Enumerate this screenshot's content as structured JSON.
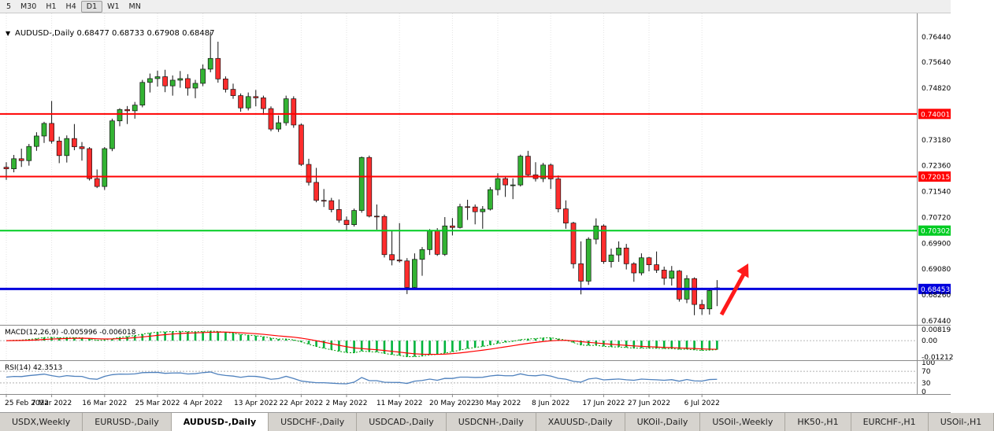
{
  "toolbar": {
    "timeframes": [
      {
        "label": "5"
      },
      {
        "label": "M30"
      },
      {
        "label": "H1"
      },
      {
        "label": "H4"
      },
      {
        "label": "D1",
        "active": true
      },
      {
        "label": "W1"
      },
      {
        "label": "MN"
      }
    ]
  },
  "chart_header": {
    "marker": "▼",
    "title": "AUDUSD-,Daily",
    "open": "0.68477",
    "high": "0.68733",
    "low": "0.67908",
    "close": "0.68487"
  },
  "chart_data": {
    "type": "candlestick",
    "symbol": "AUDUSD-",
    "timeframe": "Daily",
    "colors": {
      "up": "#33b333",
      "down": "#ff2d2d",
      "outline": "#111111",
      "wick": "#111111",
      "grid": "#e3e3e3",
      "separator": "#8a8a8a",
      "axis_text": "#000000",
      "background": "#ffffff"
    },
    "price_axis": {
      "ticks": [
        {
          "value": 0.7644,
          "label": "0.76440"
        },
        {
          "value": 0.7564,
          "label": "0.75640"
        },
        {
          "value": 0.7482,
          "label": "0.74820"
        },
        {
          "value": 0.7318,
          "label": "0.73180"
        },
        {
          "value": 0.7236,
          "label": "0.72360"
        },
        {
          "value": 0.7154,
          "label": "0.71540"
        },
        {
          "value": 0.7072,
          "label": "0.70720"
        },
        {
          "value": 0.699,
          "label": "0.69900"
        },
        {
          "value": 0.6908,
          "label": "0.69080"
        },
        {
          "value": 0.6826,
          "label": "0.68260"
        },
        {
          "value": 0.6744,
          "label": "0.67440"
        }
      ],
      "value_max": 0.77188,
      "value_min": 0.67315
    },
    "hlines": [
      {
        "value": 0.74001,
        "label": "0.74001",
        "color": "#ff0000",
        "width": 2
      },
      {
        "value": 0.72015,
        "label": "0.72015",
        "color": "#ff0000",
        "width": 2
      },
      {
        "value": 0.70302,
        "label": "0.70302",
        "color": "#00cc22",
        "width": 2
      },
      {
        "value": 0.68453,
        "label": "0.68453",
        "color": "#0000dd",
        "width": 3
      }
    ],
    "x_ticks": [
      {
        "index": 0,
        "label": "25 Feb 2022"
      },
      {
        "index": 6,
        "label": "7 Mar 2022"
      },
      {
        "index": 13,
        "label": "16 Mar 2022"
      },
      {
        "index": 20,
        "label": "25 Mar 2022"
      },
      {
        "index": 26,
        "label": "4 Apr 2022"
      },
      {
        "index": 33,
        "label": "13 Apr 2022"
      },
      {
        "index": 39,
        "label": "22 Apr 2022"
      },
      {
        "index": 45,
        "label": "2 May 2022"
      },
      {
        "index": 52,
        "label": "11 May 2022"
      },
      {
        "index": 59,
        "label": "20 May 2022"
      },
      {
        "index": 65,
        "label": "30 May 2022"
      },
      {
        "index": 72,
        "label": "8 Jun 2022"
      },
      {
        "index": 79,
        "label": "17 Jun 2022"
      },
      {
        "index": 85,
        "label": "27 Jun 2022"
      },
      {
        "index": 92,
        "label": "6 Jul 2022"
      }
    ],
    "candles": [
      [
        0.7231,
        0.7247,
        0.7191,
        0.7226
      ],
      [
        0.7226,
        0.727,
        0.7215,
        0.7258
      ],
      [
        0.7258,
        0.729,
        0.7232,
        0.7252
      ],
      [
        0.7252,
        0.7305,
        0.7236,
        0.7297
      ],
      [
        0.7297,
        0.7342,
        0.7283,
        0.733
      ],
      [
        0.733,
        0.7375,
        0.7308,
        0.737
      ],
      [
        0.737,
        0.7441,
        0.7306,
        0.7314
      ],
      [
        0.7314,
        0.7328,
        0.7244,
        0.7268
      ],
      [
        0.7268,
        0.7332,
        0.7246,
        0.7322
      ],
      [
        0.7322,
        0.7368,
        0.7285,
        0.7296
      ],
      [
        0.7296,
        0.7311,
        0.7252,
        0.729
      ],
      [
        0.729,
        0.7295,
        0.7189,
        0.7195
      ],
      [
        0.7195,
        0.7224,
        0.7165,
        0.717
      ],
      [
        0.717,
        0.7295,
        0.7159,
        0.729
      ],
      [
        0.729,
        0.7385,
        0.7282,
        0.7378
      ],
      [
        0.7378,
        0.7418,
        0.7361,
        0.7414
      ],
      [
        0.7414,
        0.7425,
        0.7368,
        0.741
      ],
      [
        0.741,
        0.7438,
        0.7385,
        0.7428
      ],
      [
        0.7428,
        0.7508,
        0.7421,
        0.75
      ],
      [
        0.75,
        0.7528,
        0.7468,
        0.7512
      ],
      [
        0.7512,
        0.7537,
        0.7487,
        0.7518
      ],
      [
        0.7518,
        0.754,
        0.7469,
        0.7489
      ],
      [
        0.7489,
        0.7522,
        0.7458,
        0.7507
      ],
      [
        0.7507,
        0.7536,
        0.7483,
        0.7512
      ],
      [
        0.7512,
        0.7526,
        0.7458,
        0.7482
      ],
      [
        0.7482,
        0.7508,
        0.745,
        0.7497
      ],
      [
        0.7497,
        0.7557,
        0.7488,
        0.7542
      ],
      [
        0.7542,
        0.7661,
        0.7532,
        0.7576
      ],
      [
        0.7576,
        0.7629,
        0.7499,
        0.7511
      ],
      [
        0.7511,
        0.7519,
        0.7468,
        0.7478
      ],
      [
        0.7478,
        0.7496,
        0.7448,
        0.7458
      ],
      [
        0.7458,
        0.7465,
        0.7407,
        0.7419
      ],
      [
        0.7419,
        0.7468,
        0.7411,
        0.7455
      ],
      [
        0.7455,
        0.7476,
        0.7424,
        0.7451
      ],
      [
        0.7451,
        0.7458,
        0.7397,
        0.7417
      ],
      [
        0.7417,
        0.7424,
        0.7345,
        0.7352
      ],
      [
        0.7352,
        0.7395,
        0.7343,
        0.7372
      ],
      [
        0.7372,
        0.7458,
        0.7363,
        0.7448
      ],
      [
        0.7448,
        0.7456,
        0.7356,
        0.7365
      ],
      [
        0.7365,
        0.737,
        0.7235,
        0.724
      ],
      [
        0.724,
        0.7258,
        0.7173,
        0.7183
      ],
      [
        0.7183,
        0.7229,
        0.712,
        0.7126
      ],
      [
        0.7126,
        0.7162,
        0.7105,
        0.7125
      ],
      [
        0.7125,
        0.7134,
        0.7088,
        0.7097
      ],
      [
        0.7097,
        0.7129,
        0.7055,
        0.7063
      ],
      [
        0.7063,
        0.7075,
        0.7029,
        0.7049
      ],
      [
        0.7049,
        0.71,
        0.7043,
        0.7094
      ],
      [
        0.7094,
        0.7265,
        0.7087,
        0.7262
      ],
      [
        0.7262,
        0.7268,
        0.7072,
        0.7076
      ],
      [
        0.7076,
        0.7113,
        0.7033,
        0.7075
      ],
      [
        0.7075,
        0.7081,
        0.6945,
        0.6954
      ],
      [
        0.6954,
        0.703,
        0.692,
        0.6937
      ],
      [
        0.6937,
        0.7054,
        0.6929,
        0.6934
      ],
      [
        0.6934,
        0.6943,
        0.6829,
        0.685
      ],
      [
        0.685,
        0.6958,
        0.6846,
        0.6939
      ],
      [
        0.6939,
        0.6978,
        0.6887,
        0.697
      ],
      [
        0.697,
        0.7035,
        0.6953,
        0.7029
      ],
      [
        0.7029,
        0.7038,
        0.695,
        0.6955
      ],
      [
        0.6955,
        0.7073,
        0.695,
        0.7045
      ],
      [
        0.7045,
        0.707,
        0.7015,
        0.704
      ],
      [
        0.704,
        0.7115,
        0.7037,
        0.7106
      ],
      [
        0.7106,
        0.7128,
        0.7064,
        0.7105
      ],
      [
        0.7105,
        0.7113,
        0.705,
        0.709
      ],
      [
        0.709,
        0.7108,
        0.7036,
        0.7098
      ],
      [
        0.7098,
        0.7168,
        0.7094,
        0.716
      ],
      [
        0.716,
        0.7212,
        0.7142,
        0.7195
      ],
      [
        0.7195,
        0.7203,
        0.7137,
        0.7175
      ],
      [
        0.7175,
        0.7196,
        0.713,
        0.7175
      ],
      [
        0.7175,
        0.7271,
        0.717,
        0.7266
      ],
      [
        0.7266,
        0.7283,
        0.72,
        0.7207
      ],
      [
        0.7207,
        0.7247,
        0.7186,
        0.7195
      ],
      [
        0.7195,
        0.7245,
        0.7184,
        0.7238
      ],
      [
        0.7238,
        0.7243,
        0.7162,
        0.7194
      ],
      [
        0.7194,
        0.7205,
        0.7088,
        0.7099
      ],
      [
        0.7099,
        0.7126,
        0.7036,
        0.7054
      ],
      [
        0.7054,
        0.7058,
        0.691,
        0.6925
      ],
      [
        0.6925,
        0.6996,
        0.6828,
        0.687
      ],
      [
        0.687,
        0.7009,
        0.6858,
        0.7003
      ],
      [
        0.7003,
        0.7069,
        0.6987,
        0.7045
      ],
      [
        0.7045,
        0.705,
        0.6925,
        0.6932
      ],
      [
        0.6932,
        0.6973,
        0.6913,
        0.6953
      ],
      [
        0.6953,
        0.6996,
        0.6931,
        0.6975
      ],
      [
        0.6975,
        0.6988,
        0.6907,
        0.6925
      ],
      [
        0.6925,
        0.693,
        0.6868,
        0.6896
      ],
      [
        0.6896,
        0.6958,
        0.6888,
        0.6944
      ],
      [
        0.6944,
        0.6947,
        0.6901,
        0.6922
      ],
      [
        0.6922,
        0.6964,
        0.6896,
        0.6905
      ],
      [
        0.6905,
        0.6916,
        0.6858,
        0.6879
      ],
      [
        0.6879,
        0.6918,
        0.6856,
        0.6902
      ],
      [
        0.6902,
        0.6905,
        0.6805,
        0.6813
      ],
      [
        0.6813,
        0.6889,
        0.68,
        0.6878
      ],
      [
        0.6878,
        0.6882,
        0.6762,
        0.6796
      ],
      [
        0.6796,
        0.6811,
        0.6763,
        0.6782
      ],
      [
        0.6782,
        0.6848,
        0.6764,
        0.684
      ],
      [
        0.68477,
        0.68733,
        0.67908,
        0.68487
      ]
    ],
    "indicators": {
      "macd": {
        "name": "MACD(12,26,9)",
        "main_value": "-0.005996",
        "signal_value": "-0.006018",
        "fast": 12,
        "slow": 26,
        "signal_period": 9,
        "axis_ticks": [
          {
            "value": 0.00819,
            "label": "0.00819"
          },
          {
            "value": 0.0,
            "label": "0.00"
          },
          {
            "value": -0.01212,
            "label": "-0.01212"
          }
        ],
        "histogram_color": "#00b33c",
        "line_color": "#009900",
        "signal_color": "#ff0000"
      },
      "rsi": {
        "name": "RSI(14)",
        "value": "42.3513",
        "period": 14,
        "axis_ticks": [
          {
            "value": 100,
            "label": "100"
          },
          {
            "value": 70,
            "label": "70"
          },
          {
            "value": 30,
            "label": "30"
          },
          {
            "value": 0,
            "label": "0"
          }
        ],
        "levels": [
          70,
          30
        ],
        "line_color": "#4f81bd"
      }
    },
    "annotation_arrow": {
      "color": "#ff1a1a"
    }
  },
  "tabs": [
    {
      "label": "USDX,Weekly"
    },
    {
      "label": "EURUSD-,Daily"
    },
    {
      "label": "AUDUSD-,Daily",
      "active": true
    },
    {
      "label": "USDCHF-,Daily"
    },
    {
      "label": "USDCAD-,Daily"
    },
    {
      "label": "USDCNH-,Daily"
    },
    {
      "label": "XAUUSD-,Daily"
    },
    {
      "label": "UKOil-,Daily"
    },
    {
      "label": "USOil-,Weekly"
    },
    {
      "label": "HK50-,H1"
    },
    {
      "label": "EURCHF-,H1"
    },
    {
      "label": "USOil-,H1"
    }
  ]
}
